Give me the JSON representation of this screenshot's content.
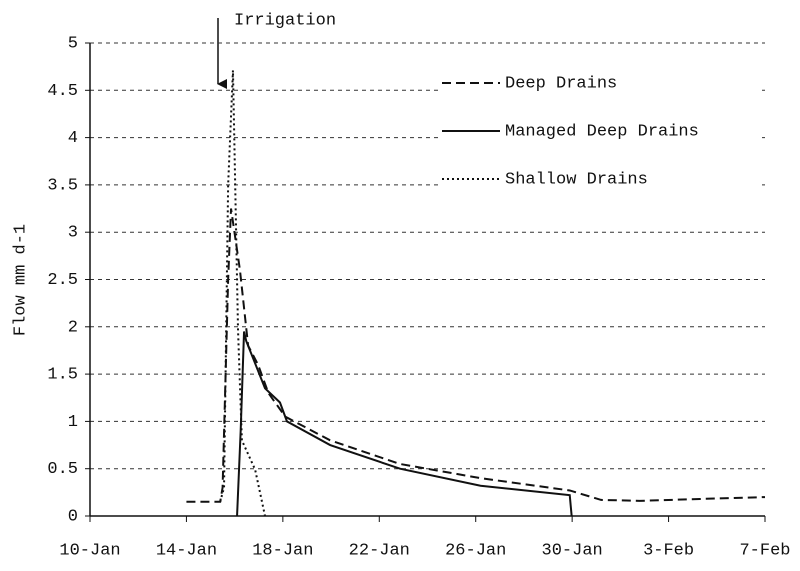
{
  "chart_data": {
    "type": "line",
    "annotation": "Irrigation",
    "ylabel": "Flow mm d-1",
    "xlim": [
      10,
      38
    ],
    "xticks": [
      {
        "value": 10,
        "label": "10-Jan"
      },
      {
        "value": 14,
        "label": "14-Jan"
      },
      {
        "value": 18,
        "label": "18-Jan"
      },
      {
        "value": 22,
        "label": "22-Jan"
      },
      {
        "value": 26,
        "label": "26-Jan"
      },
      {
        "value": 30,
        "label": "30-Jan"
      },
      {
        "value": 34,
        "label": "3-Feb"
      },
      {
        "value": 38,
        "label": "7-Feb"
      }
    ],
    "ylim": [
      0,
      5
    ],
    "yticks": [
      0,
      0.5,
      1,
      1.5,
      2,
      2.5,
      3,
      3.5,
      4,
      4.5,
      5
    ],
    "grid": true,
    "legend": "upper right",
    "series": [
      {
        "name": "Deep Drains",
        "color": "#111111",
        "dash": "dashed",
        "x": [
          14.0,
          15.4,
          15.5,
          15.73,
          15.85,
          16.22,
          16.56,
          16.97,
          17.4,
          18.1,
          19.96,
          22.86,
          26.2,
          29.9,
          31.2,
          32.8,
          35.3,
          38.0
        ],
        "values": [
          0.15,
          0.15,
          0.3,
          2.5,
          3.25,
          2.6,
          1.8,
          1.6,
          1.3,
          1.05,
          0.8,
          0.55,
          0.4,
          0.27,
          0.17,
          0.16,
          0.18,
          0.2
        ]
      },
      {
        "name": "Managed Deep Drains",
        "color": "#111111",
        "dash": "solid",
        "x": [
          16.1,
          16.25,
          16.39,
          16.48,
          17.26,
          17.88,
          18.17,
          19.96,
          22.86,
          26.2,
          29.9,
          29.98
        ],
        "values": [
          0.0,
          0.9,
          1.95,
          1.85,
          1.35,
          1.2,
          1.0,
          0.75,
          0.5,
          0.32,
          0.22,
          0.0
        ]
      },
      {
        "name": "Shallow Drains",
        "color": "#111111",
        "dash": "dotted",
        "x": [
          15.4,
          15.56,
          15.73,
          15.93,
          16.14,
          16.3,
          16.85,
          17.26
        ],
        "values": [
          0.15,
          0.3,
          3.5,
          4.71,
          1.97,
          0.8,
          0.49,
          0.0
        ]
      }
    ]
  }
}
